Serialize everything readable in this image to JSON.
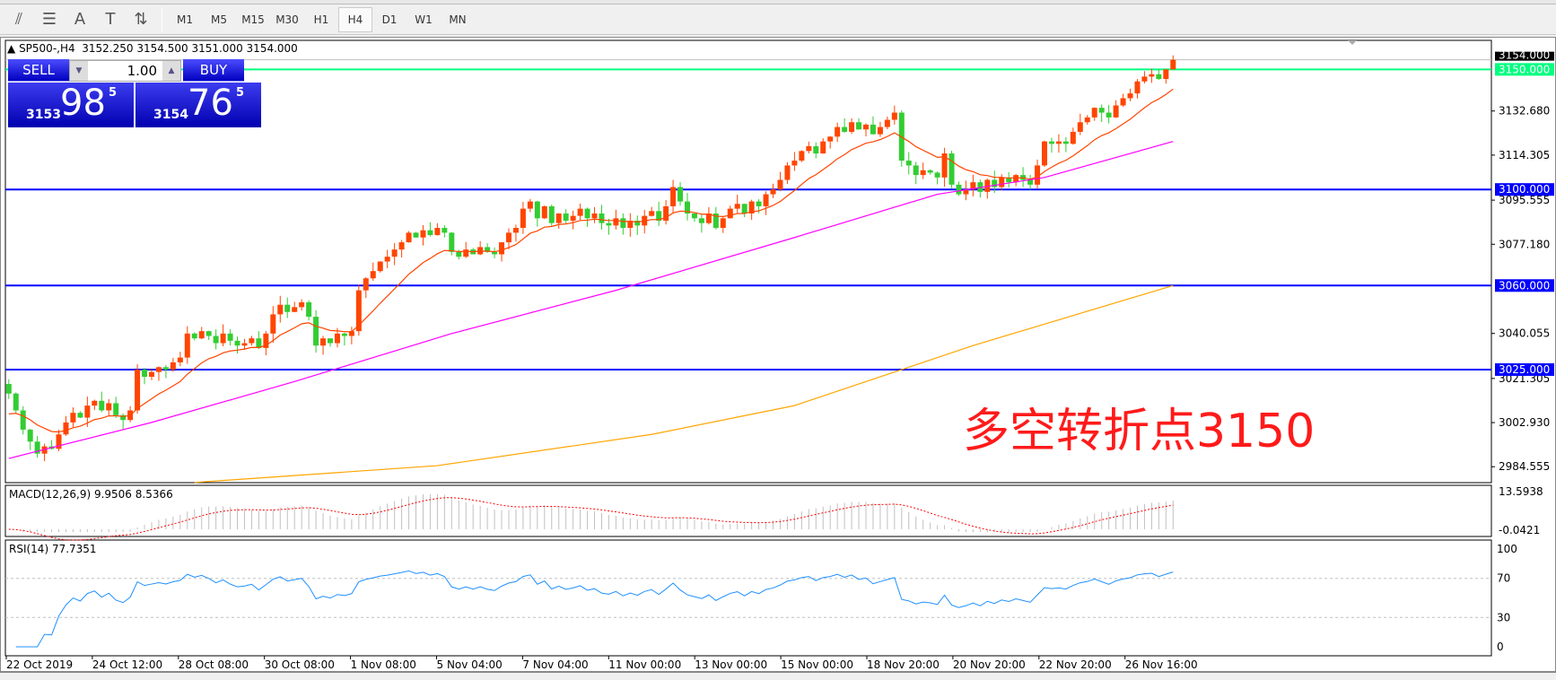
{
  "toolbar": {
    "icons": [
      "elliott-wave-icon",
      "fibonacci-icon",
      "text-icon",
      "text-label-icon",
      "arrows-icon"
    ],
    "icon_glyphs": [
      "⫽",
      "☰",
      "A",
      "T",
      "⇅"
    ],
    "timeframes": [
      "M1",
      "M5",
      "M15",
      "M30",
      "H1",
      "H4",
      "D1",
      "W1",
      "MN"
    ],
    "active_timeframe": "H4"
  },
  "header": {
    "symbol": "SP500-,H4",
    "open": "3152.250",
    "high": "3154.500",
    "low": "3151.000",
    "close": "3154.000"
  },
  "trade_panel": {
    "sell_label": "SELL",
    "buy_label": "BUY",
    "lots": "1.00",
    "bid_small": "3153",
    "bid_big": "98",
    "bid_sup": "5",
    "ask_small": "3154",
    "ask_big": "76",
    "ask_sup": "5",
    "color": "#0000c8"
  },
  "annotation": "多空转折点3150",
  "colors": {
    "bull": "#ff4500",
    "bear": "#32cd32",
    "ma_fast": "#ff4500",
    "ma_mid": "#ff00ff",
    "ma_slow": "#ffa500",
    "hline_blue": "#0000ff",
    "hline_green": "#00ff7f",
    "rsi": "#1e90ff",
    "macd_signal": "#ff0000",
    "macd_hist": "#c0c0c0"
  },
  "chart_data": {
    "type": "candlestick",
    "price_axis_ticks": [
      "3132.680",
      "3114.305",
      "3095.555",
      "3077.180",
      "3040.055",
      "3021.305",
      "3002.930",
      "2984.555"
    ],
    "current_price": "3154.000",
    "horizontal_lines": [
      {
        "value": 3150,
        "label": "3150.000",
        "color": "#00ff7f"
      },
      {
        "value": 3100,
        "label": "3100.000",
        "color": "#0000ff"
      },
      {
        "value": 3060,
        "label": "3060.000",
        "color": "#0000ff"
      },
      {
        "value": 3025,
        "label": "3025.000",
        "color": "#0000ff"
      }
    ],
    "closes": [
      3015,
      3008,
      3000,
      2995,
      2990,
      2993,
      2992,
      2998,
      3003,
      3007,
      3005,
      3010,
      3012,
      3008,
      3011,
      3006,
      3004,
      3008,
      3025,
      3022,
      3024,
      3026,
      3025,
      3028,
      3030,
      3040,
      3038,
      3041,
      3039,
      3036,
      3040,
      3037,
      3035,
      3036,
      3038,
      3034,
      3040,
      3048,
      3052,
      3049,
      3051,
      3053,
      3047,
      3035,
      3038,
      3036,
      3040,
      3039,
      3041,
      3058,
      3063,
      3066,
      3070,
      3072,
      3075,
      3078,
      3082,
      3080,
      3083,
      3081,
      3084,
      3082,
      3074,
      3072,
      3075,
      3073,
      3076,
      3074,
      3073,
      3078,
      3082,
      3084,
      3092,
      3095,
      3088,
      3093,
      3086,
      3090,
      3087,
      3089,
      3092,
      3088,
      3090,
      3086,
      3085,
      3088,
      3084,
      3087,
      3085,
      3089,
      3091,
      3087,
      3093,
      3101,
      3095,
      3090,
      3088,
      3086,
      3090,
      3084,
      3088,
      3092,
      3094,
      3090,
      3095,
      3093,
      3098,
      3100,
      3104,
      3110,
      3112,
      3116,
      3118,
      3115,
      3120,
      3122,
      3126,
      3124,
      3128,
      3125,
      3127,
      3123,
      3126,
      3129,
      3132,
      3112,
      3110,
      3106,
      3108,
      3107,
      3105,
      3115,
      3102,
      3098,
      3100,
      3103,
      3099,
      3104,
      3101,
      3105,
      3103,
      3106,
      3104,
      3102,
      3110,
      3120,
      3119,
      3120,
      3119,
      3124,
      3128,
      3130,
      3134,
      3132,
      3130,
      3135,
      3138,
      3140,
      3145,
      3147,
      3148,
      3146,
      3150,
      3154
    ],
    "ma_mid_points": [
      [
        0,
        2988
      ],
      [
        20,
        3003
      ],
      [
        40,
        3020
      ],
      [
        62,
        3040
      ],
      [
        85,
        3058
      ],
      [
        110,
        3080
      ],
      [
        130,
        3098
      ],
      [
        145,
        3105
      ],
      [
        163,
        3120
      ]
    ],
    "ma_slow_points": [
      [
        26,
        2978
      ],
      [
        60,
        2985
      ],
      [
        90,
        2998
      ],
      [
        110,
        3010
      ],
      [
        135,
        3035
      ],
      [
        163,
        3060
      ]
    ],
    "time_labels": [
      "22 Oct 2019",
      "24 Oct 12:00",
      "28 Oct 08:00",
      "30 Oct 08:00",
      "1 Nov 08:00",
      "5 Nov 04:00",
      "7 Nov 04:00",
      "11 Nov 00:00",
      "13 Nov 00:00",
      "15 Nov 00:00",
      "18 Nov 20:00",
      "20 Nov 20:00",
      "22 Nov 20:00",
      "26 Nov 16:00"
    ],
    "macd": {
      "label": "MACD(12,26,9) 9.9506 8.5366",
      "axis_top": "13.5938",
      "axis_bottom": "-0.0421"
    },
    "rsi": {
      "label": "RSI(14) 77.7351",
      "ticks": [
        "100",
        "70",
        "30",
        "0"
      ],
      "levels": [
        70,
        30
      ]
    }
  }
}
